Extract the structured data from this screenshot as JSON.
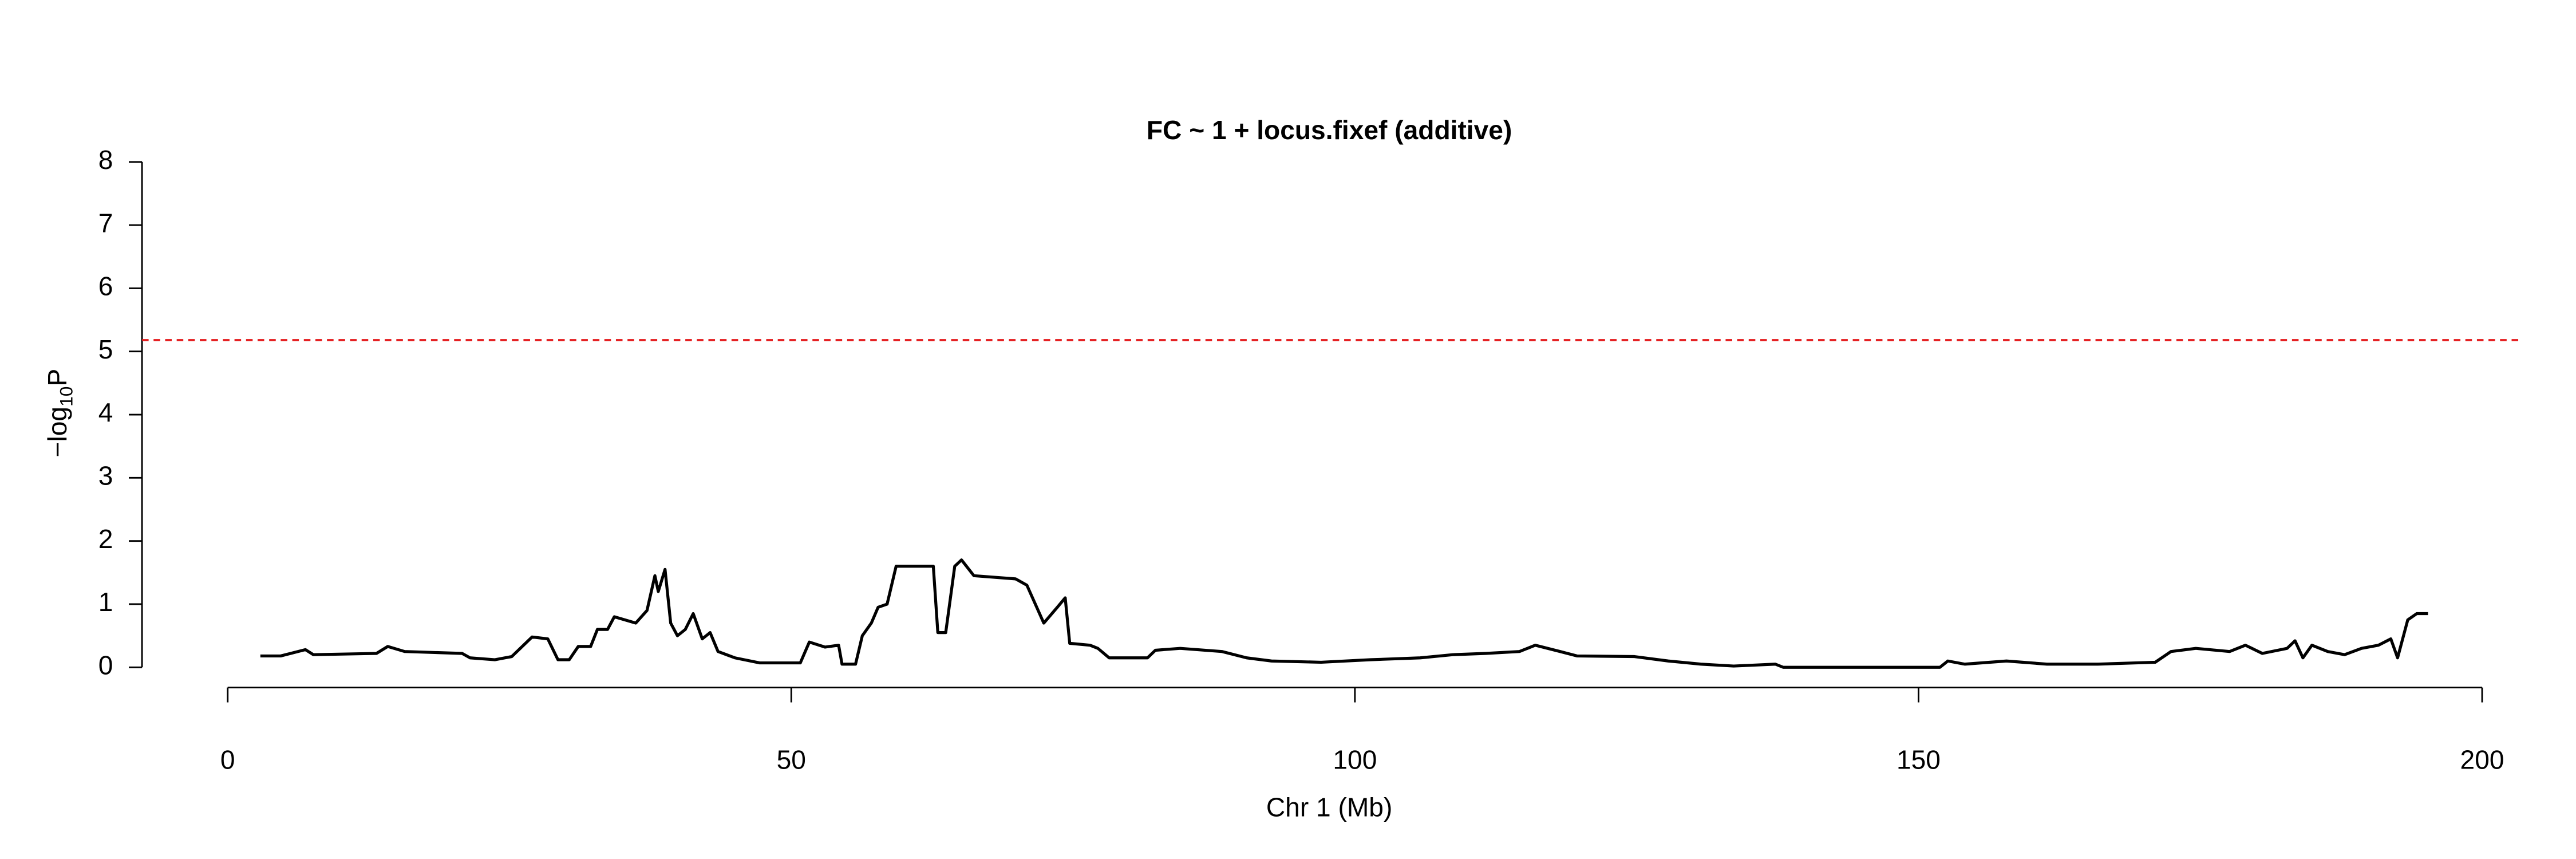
{
  "chart_data": {
    "type": "line",
    "title": "FC ~ 1 + locus.fixef (additive)",
    "x_label": "Chr 1 (Mb)",
    "y_label": {
      "prefix": "−log",
      "sub": "10",
      "suffix": "P"
    },
    "x": [
      2.9,
      4.7,
      6.9,
      7.6,
      13.2,
      14.2,
      15.7,
      20.8,
      21.5,
      23.7,
      25.2,
      27.0,
      28.4,
      29.3,
      30.3,
      31.1,
      32.2,
      32.8,
      33.7,
      34.3,
      36.2,
      37.2,
      37.9,
      38.2,
      38.8,
      39.3,
      39.9,
      40.6,
      41.3,
      42.1,
      42.8,
      43.5,
      45.0,
      47.2,
      50.8,
      51.6,
      53.0,
      54.2,
      54.5,
      55.7,
      56.3,
      57.1,
      57.7,
      58.5,
      59.3,
      62.6,
      63.0,
      63.7,
      64.5,
      65.1,
      66.2,
      69.9,
      70.9,
      72.4,
      73.6,
      74.3,
      74.7,
      76.5,
      77.2,
      78.2,
      81.6,
      82.3,
      84.5,
      88.2,
      90.4,
      92.6,
      97.0,
      101.4,
      105.8,
      108.7,
      111.6,
      114.6,
      116.0,
      118.2,
      119.7,
      124.8,
      127.8,
      130.7,
      133.6,
      137.3,
      138.0,
      151.9,
      152.6,
      154.1,
      157.8,
      161.4,
      165.9,
      171.0,
      172.4,
      174.6,
      177.6,
      179.0,
      180.5,
      182.7,
      183.4,
      184.1,
      184.9,
      186.3,
      187.8,
      189.3,
      190.8,
      191.9,
      192.5,
      193.4,
      194.2,
      195.2
    ],
    "series": [
      {
        "color": "#000000",
        "values": [
          0.18,
          0.18,
          0.28,
          0.2,
          0.22,
          0.33,
          0.25,
          0.22,
          0.15,
          0.12,
          0.17,
          0.48,
          0.45,
          0.12,
          0.12,
          0.33,
          0.33,
          0.6,
          0.6,
          0.8,
          0.7,
          0.9,
          1.45,
          1.2,
          1.55,
          0.7,
          0.5,
          0.6,
          0.85,
          0.45,
          0.55,
          0.25,
          0.15,
          0.07,
          0.07,
          0.4,
          0.32,
          0.35,
          0.05,
          0.05,
          0.5,
          0.7,
          0.95,
          1.0,
          1.6,
          1.6,
          0.55,
          0.55,
          1.6,
          1.7,
          1.45,
          1.4,
          1.3,
          0.7,
          0.95,
          1.1,
          0.38,
          0.35,
          0.3,
          0.15,
          0.15,
          0.27,
          0.3,
          0.25,
          0.15,
          0.1,
          0.08,
          0.12,
          0.15,
          0.2,
          0.22,
          0.25,
          0.35,
          0.25,
          0.18,
          0.17,
          0.1,
          0.05,
          0.02,
          0.05,
          0.0,
          0.0,
          0.1,
          0.05,
          0.1,
          0.05,
          0.05,
          0.08,
          0.25,
          0.3,
          0.25,
          0.35,
          0.22,
          0.3,
          0.42,
          0.15,
          0.35,
          0.25,
          0.2,
          0.3,
          0.35,
          0.45,
          0.15,
          0.75,
          0.85,
          0.85
        ]
      }
    ],
    "threshold": {
      "value": 5.18,
      "color": "#e41a1c"
    },
    "xlim": [
      -7.6,
      203.2
    ],
    "ylim": [
      -0.32,
      8.32
    ],
    "xticks": [
      0,
      50,
      100,
      150,
      200
    ],
    "yticks": [
      0,
      1,
      2,
      3,
      4,
      5,
      6,
      7,
      8
    ]
  }
}
